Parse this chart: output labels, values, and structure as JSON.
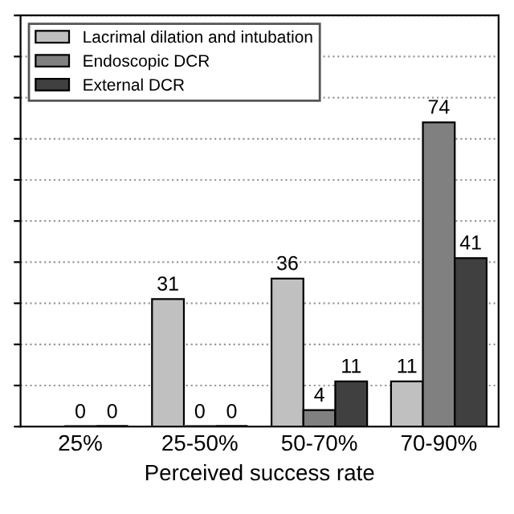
{
  "chart_data": {
    "type": "bar",
    "xlabel": "Perceived success rate",
    "categories": [
      "25%",
      "25-50%",
      "50-70%",
      "70-90%"
    ],
    "series": [
      {
        "name": "Lacrimal dilation and intubation",
        "color": "#c0c0c0",
        "values": [
          null,
          31,
          36,
          11
        ]
      },
      {
        "name": "Endoscopic DCR",
        "color": "#808080",
        "values": [
          0,
          0,
          4,
          74
        ]
      },
      {
        "name": "External DCR",
        "color": "#404040",
        "values": [
          0,
          0,
          11,
          41
        ]
      }
    ],
    "ylim": [
      0,
      100
    ],
    "yticks": [
      {
        "value": 0,
        "label": null
      },
      {
        "value": 10,
        "label": null
      },
      {
        "value": 20,
        "label": null
      },
      {
        "value": 30,
        "label": null
      },
      {
        "value": 40,
        "label": null
      },
      {
        "value": 50,
        "label": null
      },
      {
        "value": 60,
        "label": null
      },
      {
        "value": 70,
        "label": null
      },
      {
        "value": 80,
        "label": null
      },
      {
        "value": 90,
        "label": null
      },
      {
        "value": 100,
        "label": null
      }
    ],
    "tick_labels": "x",
    "grid": "y",
    "legend": "top left",
    "data_labels": true
  }
}
